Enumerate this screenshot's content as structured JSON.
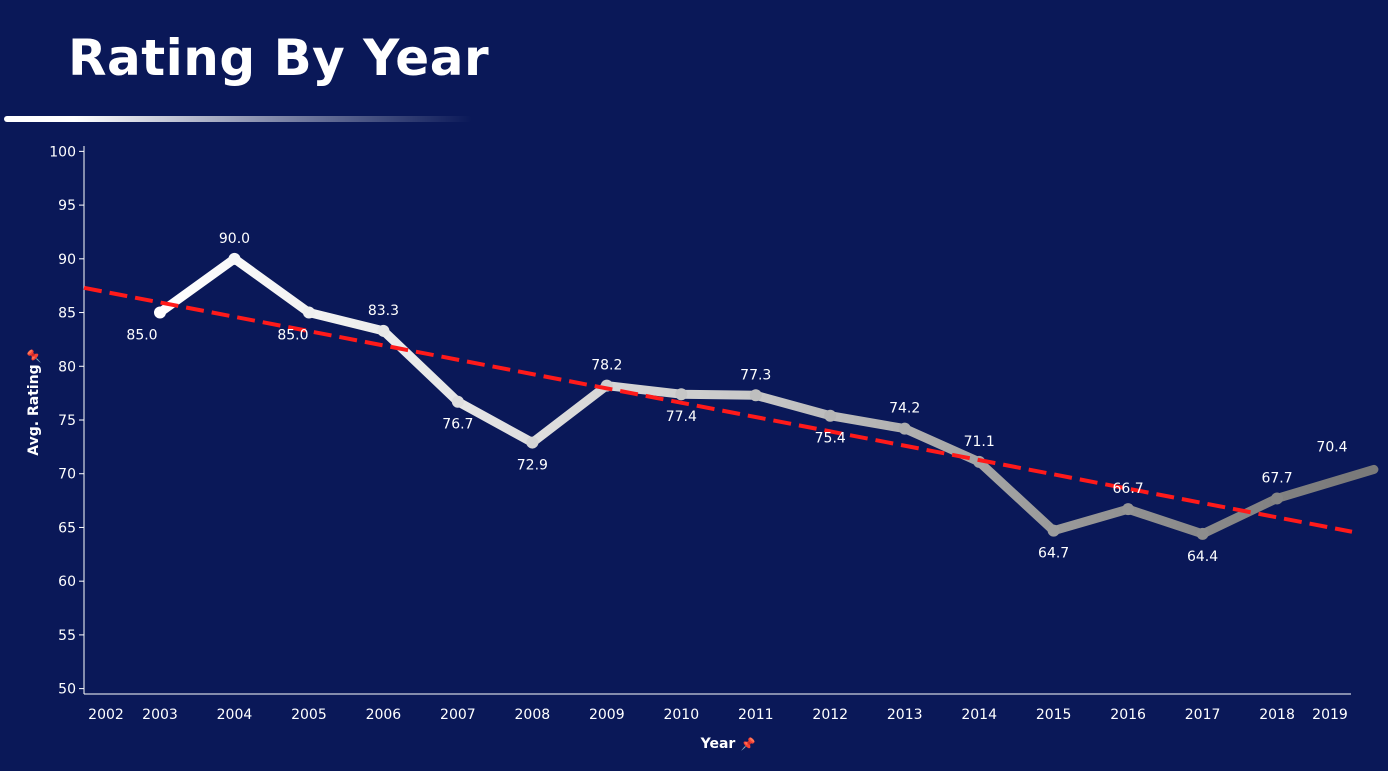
{
  "title": "Rating By Year",
  "chart_data": {
    "type": "line",
    "xlabel": "Year",
    "ylabel": "Avg. Rating",
    "axis_pin_icon": "pin-icon",
    "x_ticks": [
      "2002",
      "2003",
      "2004",
      "2005",
      "2006",
      "2007",
      "2008",
      "2009",
      "2010",
      "2011",
      "2012",
      "2013",
      "2014",
      "2015",
      "2016",
      "2017",
      "2018",
      "2019"
    ],
    "x_range": [
      2002,
      2019.3
    ],
    "y_ticks": [
      50,
      55,
      60,
      65,
      70,
      75,
      80,
      85,
      90,
      95,
      100
    ],
    "ylim": [
      49.5,
      100.5
    ],
    "series": [
      {
        "x": [
          2003,
          2004,
          2005,
          2006,
          2007,
          2008,
          2009,
          2010,
          2011,
          2012,
          2013,
          2014,
          2015,
          2016,
          2017,
          2018,
          2019.3
        ],
        "values": [
          85.0,
          90.0,
          85.0,
          83.3,
          76.7,
          72.9,
          78.2,
          77.4,
          77.3,
          75.4,
          74.2,
          71.1,
          64.7,
          66.7,
          64.4,
          67.7,
          70.4
        ],
        "labels": [
          "85.0",
          "90.0",
          "85.0",
          "83.3",
          "76.7",
          "72.9",
          "78.2",
          "77.4",
          "77.3",
          "75.4",
          "74.2",
          "71.1",
          "64.7",
          "66.7",
          "64.4",
          "67.7",
          "70.4"
        ],
        "color_gradient": [
          "#ffffff",
          "#e6e6e6",
          "#c8c8c8",
          "#9a9a9a",
          "#7a7a7a"
        ]
      }
    ],
    "trendline": {
      "style": "dashed",
      "color": "#ff1a1a",
      "x": [
        2002,
        2019.3
      ],
      "values": [
        87.3,
        64.6
      ]
    },
    "grid": false,
    "legend": "none"
  }
}
